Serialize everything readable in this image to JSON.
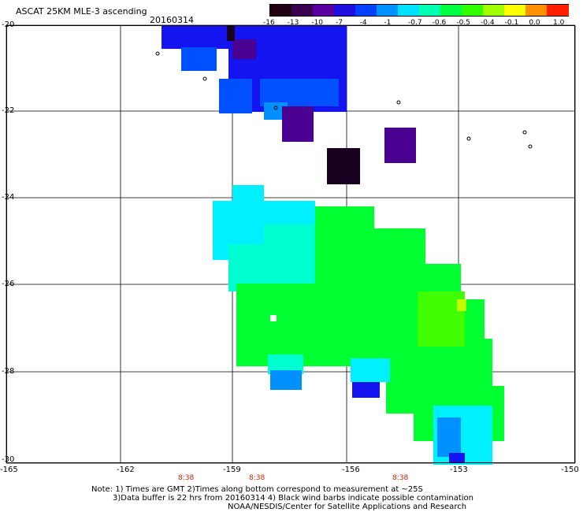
{
  "header": {
    "title": "ASCAT 25KM MLE-3 ascending",
    "date": "20160314"
  },
  "colorbar": {
    "ticks": [
      "-16",
      "-13",
      "-10",
      "-7",
      "-4",
      "-1",
      "-0.7",
      "-0.6",
      "-0.5",
      "-0.4",
      "-0.1",
      "0.0",
      "1.0"
    ],
    "colors": [
      "#200010",
      "#3a0050",
      "#5a00a0",
      "#2010e0",
      "#0040ff",
      "#0090ff",
      "#00e0ff",
      "#00ffb0",
      "#00ff40",
      "#30ff00",
      "#a0ff00",
      "#ffff00",
      "#ff9000",
      "#ff2000"
    ]
  },
  "axes": {
    "y_ticks": [
      "-20",
      "-22",
      "-24",
      "-26",
      "-28",
      "-30"
    ],
    "x_ticks": [
      "-165",
      "-162",
      "-159",
      "-156",
      "-153",
      "-150"
    ],
    "time_labels": [
      "8:38",
      "8:38",
      "8:38"
    ]
  },
  "footer": {
    "note_line1": "Note: 1) Times are GMT 2)Times along bottom correspond to measurement at ~25S",
    "note_line2": "3)Data buffer is 22 hrs from 20160314 4) Black wind barbs indicate possible contamination",
    "credit": "NOAA/NESDIS/Center for Satellite Applications and Research"
  },
  "map_colors": {
    "dark_purple": "#1a0020",
    "purple": "#4a0090",
    "blue": "#1414f0",
    "mid_blue": "#0050ff",
    "light_blue": "#0090ff",
    "cyan": "#00f0ff",
    "aqua": "#00ffd0",
    "green": "#00ff30",
    "lime": "#40ff00",
    "yellow_green": "#c0ff00"
  }
}
